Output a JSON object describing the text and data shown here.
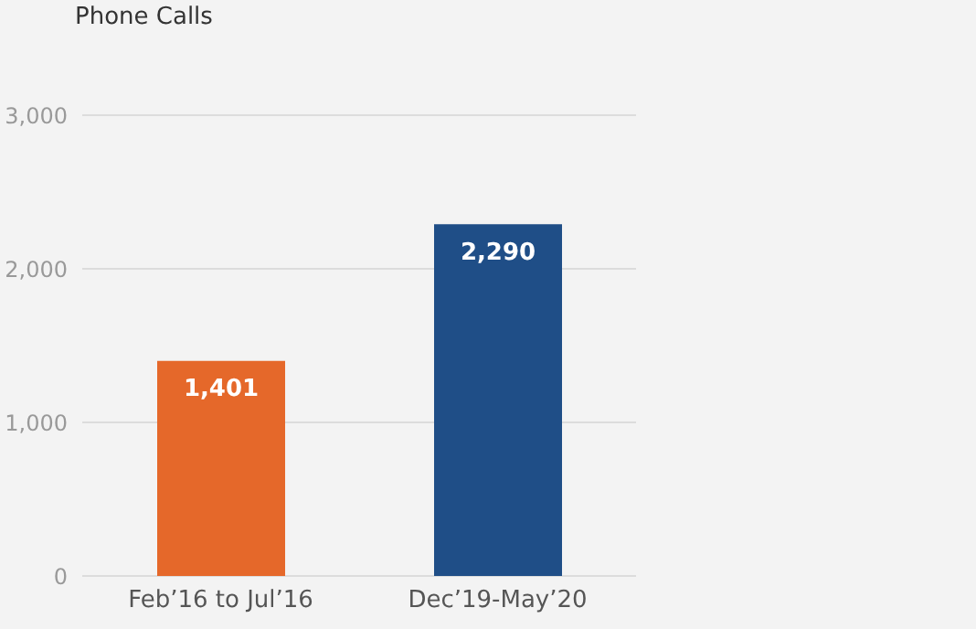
{
  "chart_data": {
    "type": "bar",
    "title": "Phone Calls",
    "categories": [
      "Feb’16 to Jul’16",
      "Dec’19-May’20"
    ],
    "values": [
      1401,
      2290
    ],
    "colors": [
      "#e5682a",
      "#1f4e87"
    ],
    "value_labels": [
      "1,401",
      "2,290"
    ],
    "ylim": [
      0,
      3000
    ],
    "yticks": [
      {
        "value": 0,
        "label": "0"
      },
      {
        "value": 1000,
        "label": "1,000"
      },
      {
        "value": 2000,
        "label": "2,000"
      },
      {
        "value": 3000,
        "label": "3,000"
      }
    ],
    "grid": "y",
    "legend": false
  }
}
